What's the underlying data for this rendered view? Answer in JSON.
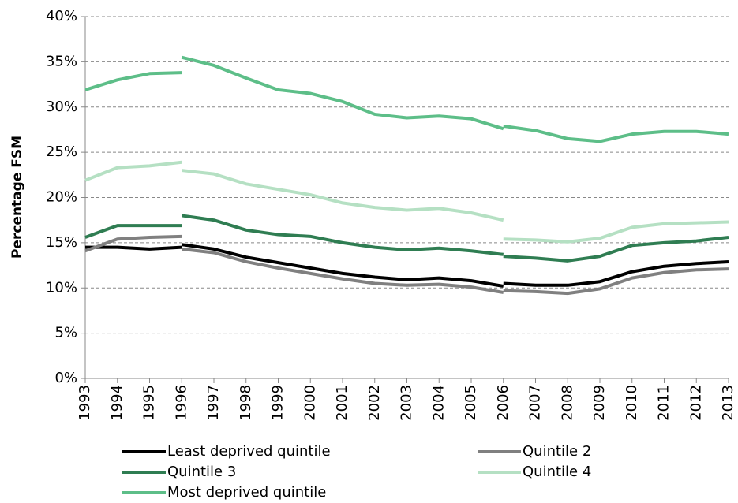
{
  "chart_data": {
    "type": "line",
    "y_label": "Percentage  FSM",
    "periods": [
      {
        "x": [
          1993,
          1994,
          1995,
          1996
        ]
      },
      {
        "x": [
          1996,
          1997,
          1998,
          1999,
          2000,
          2001,
          2002,
          2003,
          2004,
          2005,
          2006
        ]
      },
      {
        "x": [
          2006,
          2007,
          2008,
          2009,
          2010,
          2011,
          2012,
          2013
        ]
      }
    ],
    "xlim": [
      1993,
      2013
    ],
    "xticks": [
      1993,
      1994,
      1995,
      1996,
      1997,
      1998,
      1999,
      2000,
      2001,
      2002,
      2003,
      2004,
      2005,
      2006,
      2007,
      2008,
      2009,
      2010,
      2011,
      2012,
      2013
    ],
    "ylim": [
      0,
      40
    ],
    "yticks": [
      {
        "value": 0,
        "label": "0%"
      },
      {
        "value": 5,
        "label": "5%"
      },
      {
        "value": 10,
        "label": "10%"
      },
      {
        "value": 15,
        "label": "15%"
      },
      {
        "value": 20,
        "label": "20%"
      },
      {
        "value": 25,
        "label": "25%"
      },
      {
        "value": 30,
        "label": "30%"
      },
      {
        "value": 35,
        "label": "35%"
      },
      {
        "value": 40,
        "label": "40%"
      }
    ],
    "grid": true,
    "series": [
      {
        "name": "Least deprived quintile",
        "color": "#000000",
        "values": [
          [
            14.5,
            14.5,
            14.3,
            14.5
          ],
          [
            14.8,
            14.3,
            13.4,
            12.8,
            12.2,
            11.6,
            11.2,
            10.9,
            11.1,
            10.8,
            10.2
          ],
          [
            10.5,
            10.3,
            10.3,
            10.7,
            11.8,
            12.4,
            12.7,
            12.9
          ]
        ]
      },
      {
        "name": "Quintile 2",
        "color": "#808080",
        "values": [
          [
            14.1,
            15.4,
            15.6,
            15.7
          ],
          [
            14.3,
            13.9,
            12.9,
            12.2,
            11.6,
            11.0,
            10.5,
            10.3,
            10.4,
            10.1,
            9.5
          ],
          [
            9.7,
            9.6,
            9.4,
            9.9,
            11.1,
            11.7,
            12.0,
            12.1
          ]
        ]
      },
      {
        "name": "Quintile 3",
        "color": "#2f7d52",
        "values": [
          [
            15.6,
            16.9,
            16.9,
            16.9
          ],
          [
            18.0,
            17.5,
            16.4,
            15.9,
            15.7,
            15.0,
            14.5,
            14.2,
            14.4,
            14.1,
            13.7
          ],
          [
            13.5,
            13.3,
            13.0,
            13.5,
            14.7,
            15.0,
            15.2,
            15.6
          ]
        ]
      },
      {
        "name": "Quintile 4",
        "color": "#b5e0c3",
        "values": [
          [
            21.9,
            23.3,
            23.5,
            23.9
          ],
          [
            23.0,
            22.6,
            21.5,
            20.9,
            20.3,
            19.4,
            18.9,
            18.6,
            18.8,
            18.3,
            17.5
          ],
          [
            15.4,
            15.3,
            15.1,
            15.5,
            16.7,
            17.1,
            17.2,
            17.3
          ]
        ]
      },
      {
        "name": "Most deprived quintile",
        "color": "#5dbe88",
        "values": [
          [
            31.9,
            33.0,
            33.7,
            33.8
          ],
          [
            35.5,
            34.6,
            33.2,
            31.9,
            31.5,
            30.6,
            29.2,
            28.8,
            29.0,
            28.7,
            27.6
          ],
          [
            27.9,
            27.4,
            26.5,
            26.2,
            27.0,
            27.3,
            27.3,
            27.0
          ]
        ]
      }
    ]
  }
}
